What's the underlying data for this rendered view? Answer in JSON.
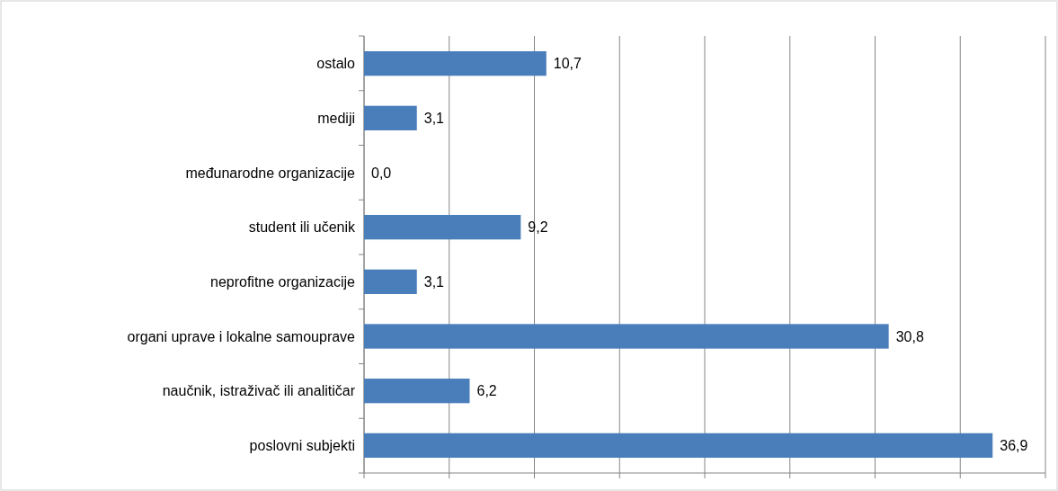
{
  "chart_data": {
    "type": "bar",
    "orientation": "horizontal",
    "categories": [
      "ostalo",
      "mediji",
      "međunarodne organizacije",
      "student ili učenik",
      "neprofitne organizacije",
      "organi uprave i lokalne samouprave",
      "naučnik, istraživač ili analitičar",
      "poslovni subjekti"
    ],
    "values": [
      10.7,
      3.1,
      0.0,
      9.2,
      3.1,
      30.8,
      6.2,
      36.9
    ],
    "value_labels": [
      "10,7",
      "3,1",
      "0,0",
      "9,2",
      "3,1",
      "30,8",
      "6,2",
      "36,9"
    ],
    "color": "#4a7ebb",
    "xlim": [
      0,
      40
    ],
    "xticks": [
      {
        "value": 0,
        "label": null
      },
      {
        "value": 5,
        "label": null
      },
      {
        "value": 10,
        "label": null
      },
      {
        "value": 15,
        "label": null
      },
      {
        "value": 20,
        "label": null
      },
      {
        "value": 25,
        "label": null
      },
      {
        "value": 30,
        "label": null
      },
      {
        "value": 35,
        "label": null
      },
      {
        "value": 40,
        "label": null
      }
    ],
    "grid": "x",
    "tick_labels": "y"
  }
}
